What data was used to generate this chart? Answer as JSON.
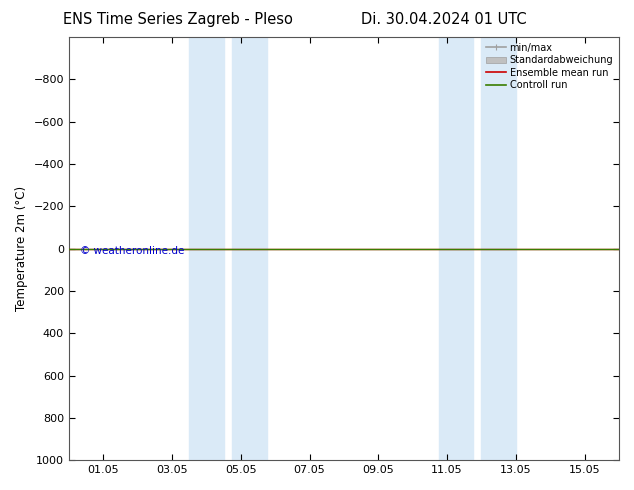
{
  "title_left": "ENS Time Series Zagreb - Pleso",
  "title_right": "Di. 30.04.2024 01 UTC",
  "ylabel": "Temperature 2m (°C)",
  "copyright_text": "© weatheronline.de",
  "copyright_color": "#0000cc",
  "background_color": "#ffffff",
  "plot_bg_color": "#ffffff",
  "x_min": 0,
  "x_max": 16,
  "ylim_bottom": 1000,
  "ylim_top": -1000,
  "yticks": [
    -800,
    -600,
    -400,
    -200,
    0,
    200,
    400,
    600,
    800,
    1000
  ],
  "xtick_labels": [
    "01.05",
    "03.05",
    "05.05",
    "07.05",
    "09.05",
    "11.05",
    "13.05",
    "15.05"
  ],
  "xtick_positions": [
    1,
    3,
    5,
    7,
    9,
    11,
    13,
    15
  ],
  "shaded_bands": [
    [
      3.5,
      4.5
    ],
    [
      4.75,
      5.75
    ],
    [
      10.75,
      11.75
    ],
    [
      12.0,
      13.0
    ]
  ],
  "shaded_color": "#daeaf7",
  "green_line_color": "#3a7d00",
  "red_line_color": "#cc0000",
  "legend_items": [
    {
      "label": "min/max",
      "color": "#a0a0a0",
      "lw": 1.2
    },
    {
      "label": "Standardabweichung",
      "color": "#c0c0c0",
      "lw": 5
    },
    {
      "label": "Ensemble mean run",
      "color": "#cc0000",
      "lw": 1.2
    },
    {
      "label": "Controll run",
      "color": "#3a7d00",
      "lw": 1.2
    }
  ],
  "spine_color": "#555555",
  "title_fontsize": 10.5,
  "axis_label_fontsize": 8.5,
  "tick_fontsize": 8
}
